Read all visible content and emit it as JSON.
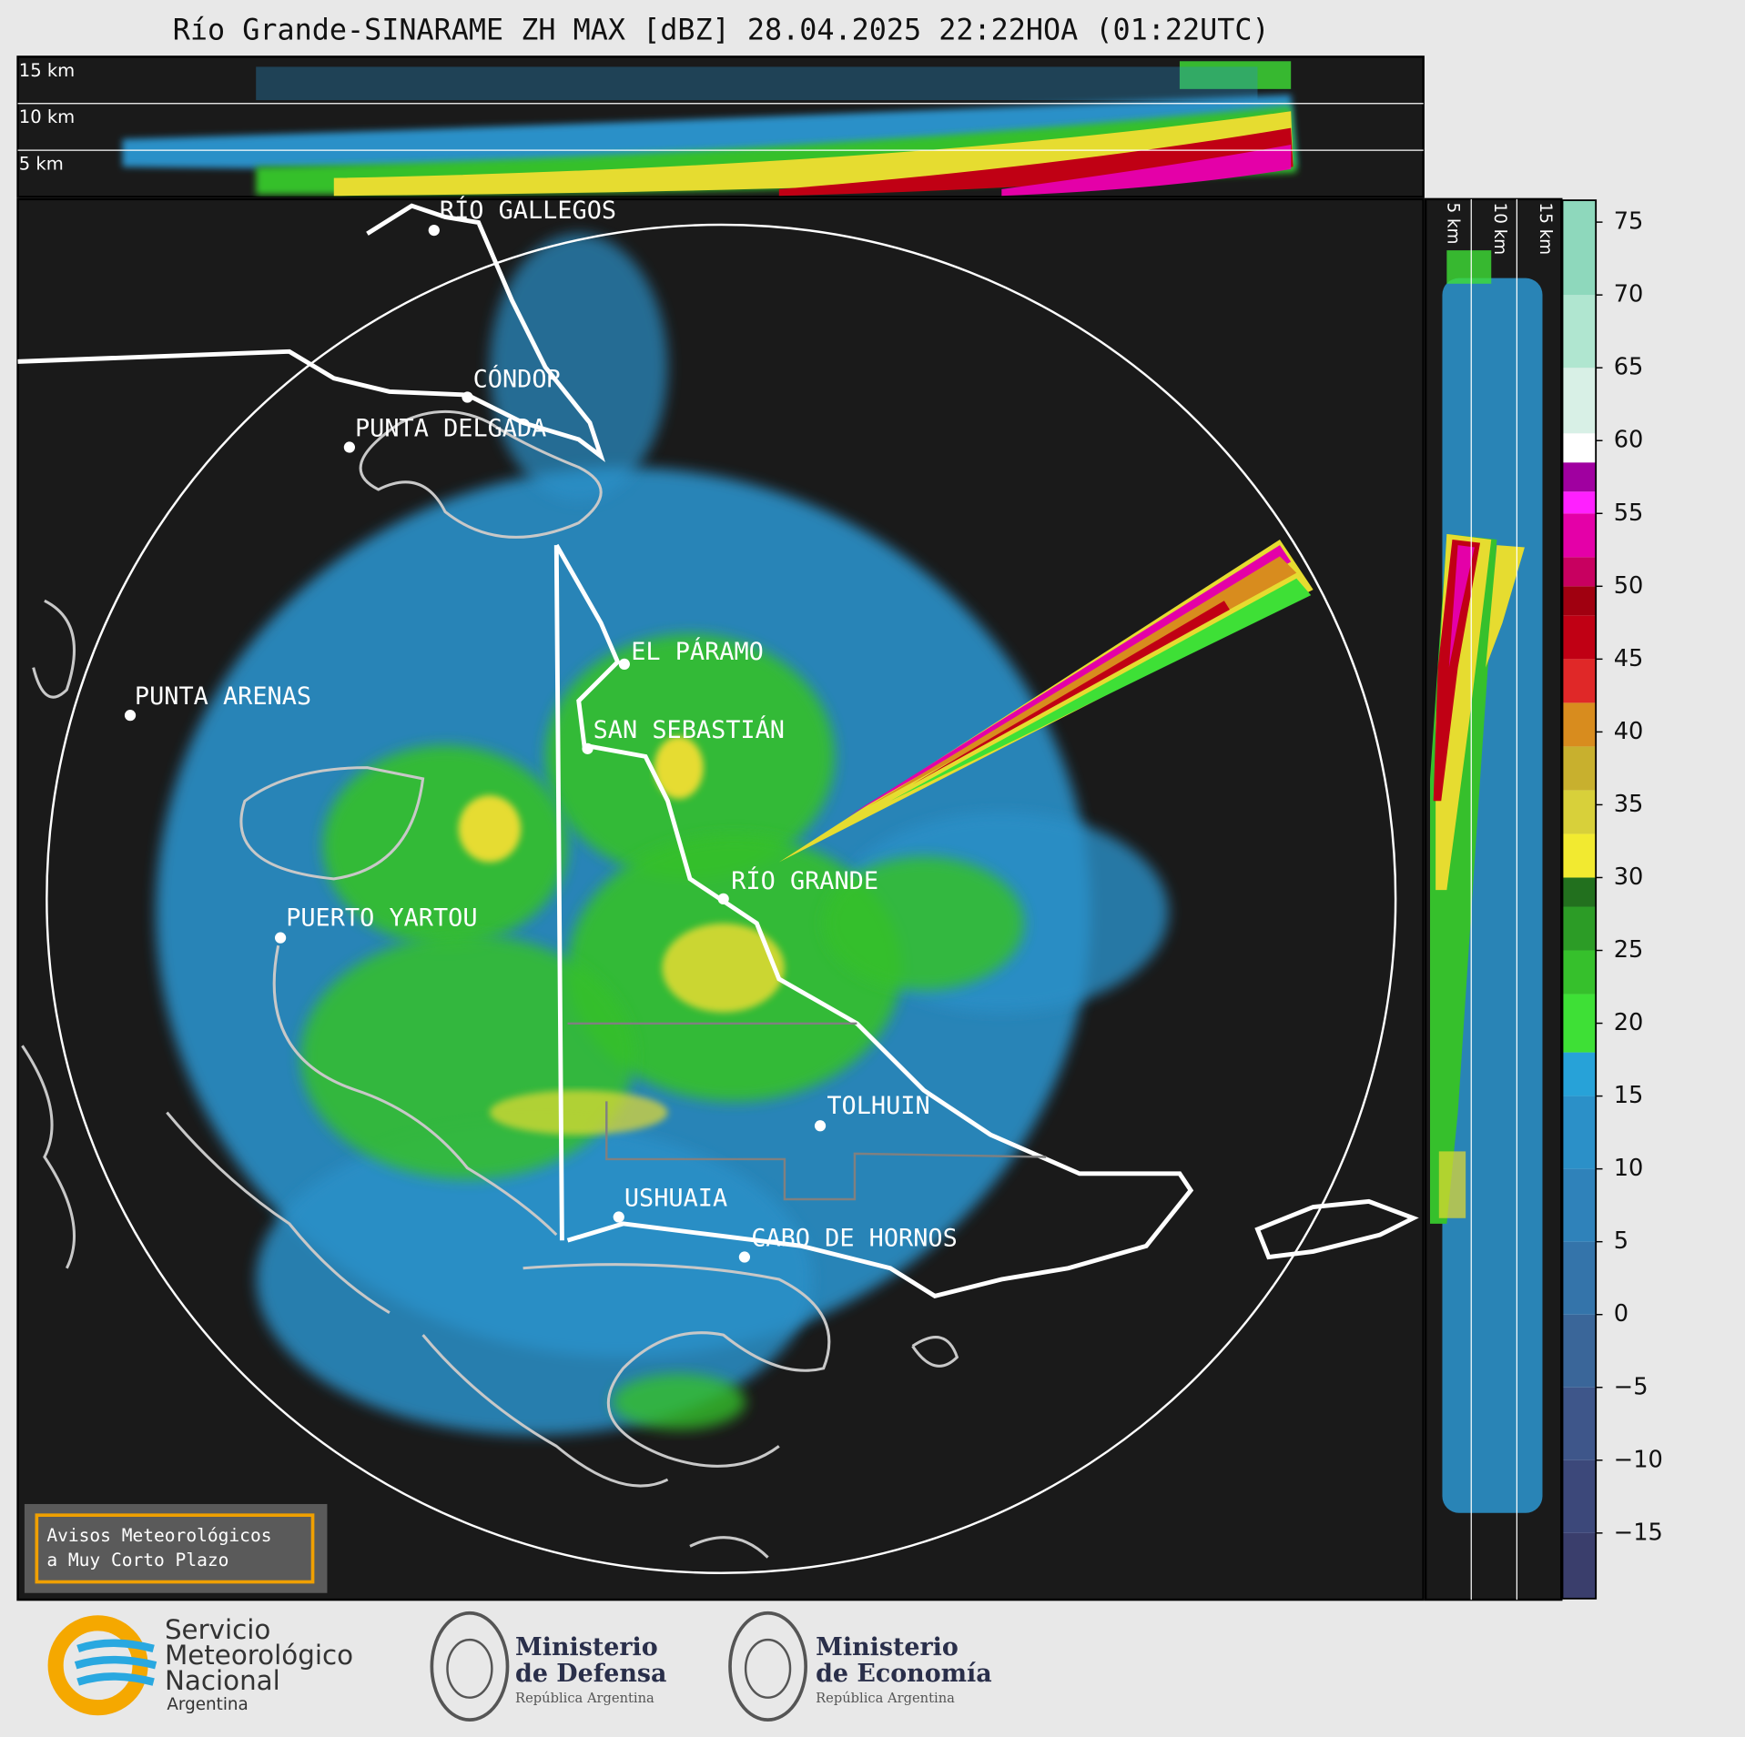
{
  "title": "Río Grande-SINARAME ZH MAX [dBZ] 28.04.2025 22:22HOA (01:22UTC)",
  "top_panel": {
    "height_labels": [
      "15 km",
      "10 km",
      "5 km"
    ]
  },
  "side_panel": {
    "height_labels": [
      "5 km",
      "10 km",
      "15 km"
    ]
  },
  "places": [
    "RÍO GALLEGOS",
    "CÓNDOR",
    "PUNTA DELGADA",
    "EL PÁRAMO",
    "PUNTA ARENAS",
    "SAN SEBASTIÁN",
    "RÍO GRANDE",
    "PUERTO YARTOU",
    "TOLHUIN",
    "USHUAIA",
    "CABO DE HORNOS"
  ],
  "notice": [
    "Avisos Meteorológicos",
    "a Muy Corto Plazo"
  ],
  "colorbar": {
    "lim": [
      -19.5,
      76.5
    ],
    "ticks": [
      75,
      70,
      65,
      60,
      55,
      50,
      45,
      40,
      35,
      30,
      25,
      20,
      15,
      10,
      5,
      0,
      {
        "value": -5,
        "label": "−5"
      },
      {
        "value": -10,
        "label": "−10"
      },
      {
        "value": -15,
        "label": "−15"
      }
    ],
    "stops": [
      {
        "from": -19.5,
        "color": "#3a3e6c"
      },
      {
        "from": -15,
        "color": "#3c487a"
      },
      {
        "from": -10,
        "color": "#3e568a"
      },
      {
        "from": -5,
        "color": "#3a6699"
      },
      {
        "from": 0,
        "color": "#3474aa"
      },
      {
        "from": 5,
        "color": "#2f82ba"
      },
      {
        "from": 10,
        "color": "#2b90c8"
      },
      {
        "from": 15,
        "color": "#27a2d8"
      },
      {
        "from": 18,
        "color": "#3ee036"
      },
      {
        "from": 22,
        "color": "#36c02c"
      },
      {
        "from": 25,
        "color": "#2c9c26"
      },
      {
        "from": 28,
        "color": "#22701e"
      },
      {
        "from": 30,
        "color": "#f2ea30"
      },
      {
        "from": 33,
        "color": "#d8d03a"
      },
      {
        "from": 36,
        "color": "#c8b02e"
      },
      {
        "from": 39,
        "color": "#d88c1e"
      },
      {
        "from": 42,
        "color": "#e02828"
      },
      {
        "from": 45,
        "color": "#c00014"
      },
      {
        "from": 48,
        "color": "#a00010"
      },
      {
        "from": 50,
        "color": "#c80060"
      },
      {
        "from": 52,
        "color": "#e400a8"
      },
      {
        "from": 55,
        "color": "#ff20ff"
      },
      {
        "from": 56.5,
        "color": "#a000a0"
      },
      {
        "from": 58.5,
        "color": "#ffffff"
      },
      {
        "from": 60.5,
        "color": "#d8f0e6"
      },
      {
        "from": 65,
        "color": "#b0e6d0"
      },
      {
        "from": 70,
        "color": "#8ed8bc"
      }
    ]
  },
  "logos": {
    "smn": [
      "Servicio",
      "Meteorológico",
      "Nacional",
      "Argentina"
    ],
    "defensa": [
      "Ministerio",
      "de Defensa",
      "República Argentina"
    ],
    "economia": [
      "Ministerio",
      "de Economía",
      "República Argentina"
    ]
  }
}
